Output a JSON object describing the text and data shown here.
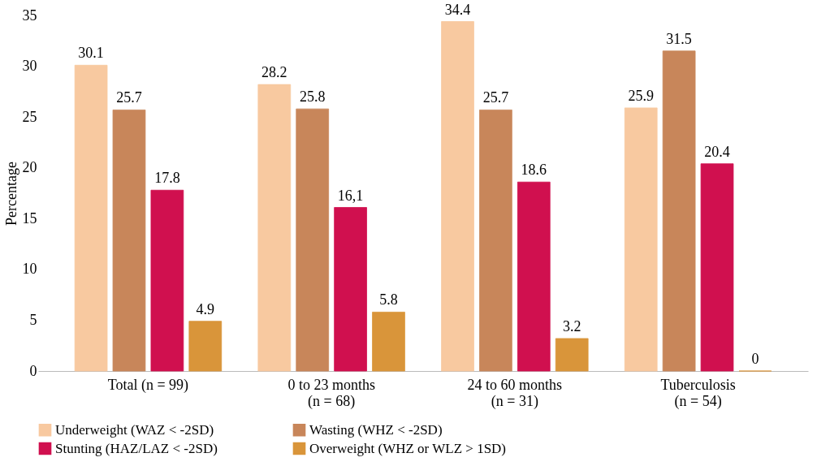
{
  "chart_data": {
    "type": "bar",
    "ylabel": "Percentage",
    "categories": [
      "Total (n = 99)",
      "0 to 23 months\n(n = 68)",
      "24 to 60 months\n(n = 31)",
      "Tuberculosis\n(n = 54)"
    ],
    "series": [
      {
        "name": "Underweight (WAZ < -2SD)",
        "color": "#f8c9a0",
        "values": [
          30.1,
          28.2,
          34.4,
          25.9
        ],
        "value_labels": [
          "30.1",
          "28.2",
          "34.4",
          "25.9"
        ]
      },
      {
        "name": "Wasting (WHZ < -2SD)",
        "color": "#c8865a",
        "values": [
          25.7,
          25.8,
          25.7,
          31.5
        ],
        "value_labels": [
          "25.7",
          "25.8",
          "25.7",
          "31.5"
        ]
      },
      {
        "name": "Stunting (HAZ/LAZ < -2SD)",
        "color": "#d0104f",
        "values": [
          17.8,
          16.1,
          18.6,
          20.4
        ],
        "value_labels": [
          "17.8",
          "16,1",
          "18.6",
          "20.4"
        ]
      },
      {
        "name": "Overweight (WHZ or WLZ > 1SD)",
        "color": "#d9953a",
        "values": [
          4.9,
          5.8,
          3.2,
          0
        ],
        "value_labels": [
          "4.9",
          "5.8",
          "3.2",
          "0"
        ]
      }
    ],
    "ylim": [
      0,
      35
    ],
    "yticks": [
      0,
      5,
      10,
      15,
      20,
      25,
      30,
      35
    ],
    "grid": false,
    "legend": "bottom"
  }
}
